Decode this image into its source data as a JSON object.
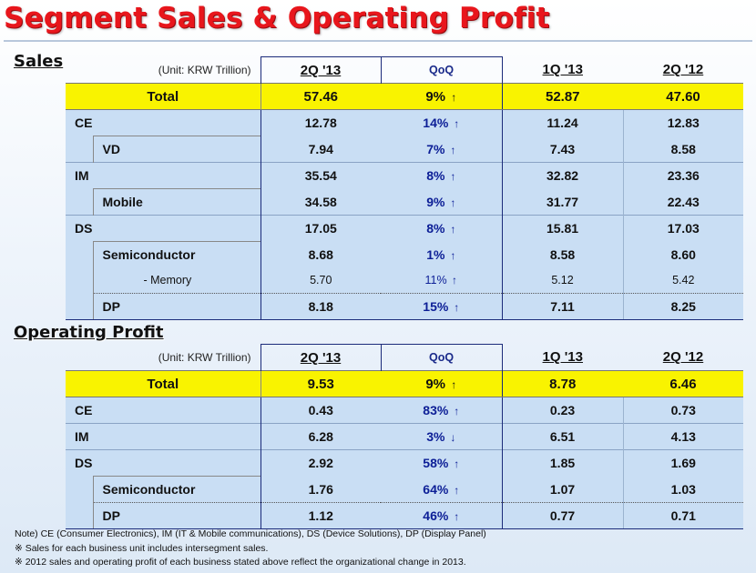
{
  "title": "Segment Sales & Operating Profit",
  "sales": {
    "label": "Sales",
    "unit": "(Unit: KRW Trillion)",
    "headers": [
      "2Q '13",
      "QoQ",
      "1Q '13",
      "2Q '12"
    ],
    "rows": [
      {
        "label": "Total",
        "v2q13": "57.46",
        "qoq": "9%",
        "dir": "↑",
        "v1q13": "52.87",
        "v2q12": "47.60"
      },
      {
        "label": "CE",
        "v2q13": "12.78",
        "qoq": "14%",
        "dir": "↑",
        "v1q13": "11.24",
        "v2q12": "12.83"
      },
      {
        "label": "VD",
        "v2q13": "7.94",
        "qoq": "7%",
        "dir": "↑",
        "v1q13": "7.43",
        "v2q12": "8.58"
      },
      {
        "label": "IM",
        "v2q13": "35.54",
        "qoq": "8%",
        "dir": "↑",
        "v1q13": "32.82",
        "v2q12": "23.36"
      },
      {
        "label": "Mobile",
        "v2q13": "34.58",
        "qoq": "9%",
        "dir": "↑",
        "v1q13": "31.77",
        "v2q12": "22.43"
      },
      {
        "label": "DS",
        "v2q13": "17.05",
        "qoq": "8%",
        "dir": "↑",
        "v1q13": "15.81",
        "v2q12": "17.03"
      },
      {
        "label": "Semiconductor",
        "v2q13": "8.68",
        "qoq": "1%",
        "dir": "↑",
        "v1q13": "8.58",
        "v2q12": "8.60"
      },
      {
        "label": "- Memory",
        "v2q13": "5.70",
        "qoq": "11%",
        "dir": "↑",
        "v1q13": "5.12",
        "v2q12": "5.42"
      },
      {
        "label": "DP",
        "v2q13": "8.18",
        "qoq": "15%",
        "dir": "↑",
        "v1q13": "7.11",
        "v2q12": "8.25"
      }
    ]
  },
  "op": {
    "label": "Operating Profit",
    "unit": "(Unit: KRW Trillion)",
    "headers": [
      "2Q '13",
      "QoQ",
      "1Q '13",
      "2Q '12"
    ],
    "rows": [
      {
        "label": "Total",
        "v2q13": "9.53",
        "qoq": "9%",
        "dir": "↑",
        "v1q13": "8.78",
        "v2q12": "6.46"
      },
      {
        "label": "CE",
        "v2q13": "0.43",
        "qoq": "83%",
        "dir": "↑",
        "v1q13": "0.23",
        "v2q12": "0.73"
      },
      {
        "label": "IM",
        "v2q13": "6.28",
        "qoq": "3%",
        "dir": "↓",
        "v1q13": "6.51",
        "v2q12": "4.13"
      },
      {
        "label": "DS",
        "v2q13": "2.92",
        "qoq": "58%",
        "dir": "↑",
        "v1q13": "1.85",
        "v2q12": "1.69"
      },
      {
        "label": "Semiconductor",
        "v2q13": "1.76",
        "qoq": "64%",
        "dir": "↑",
        "v1q13": "1.07",
        "v2q12": "1.03"
      },
      {
        "label": "DP",
        "v2q13": "1.12",
        "qoq": "46%",
        "dir": "↑",
        "v1q13": "0.77",
        "v2q12": "0.71"
      }
    ]
  },
  "notes": [
    "Note) CE (Consumer Electronics), IM (IT & Mobile communications), DS (Device Solutions), DP (Display Panel)",
    "※ Sales for each business unit includes intersegment sales.",
    "※ 2012 sales and operating profit of each business stated above reflect the organizational change in 2013."
  ],
  "colors": {
    "title": "#e8161c",
    "total_row": "#f9f300",
    "row_bg": "#c9def4",
    "qoq_text": "#0c1e96"
  }
}
